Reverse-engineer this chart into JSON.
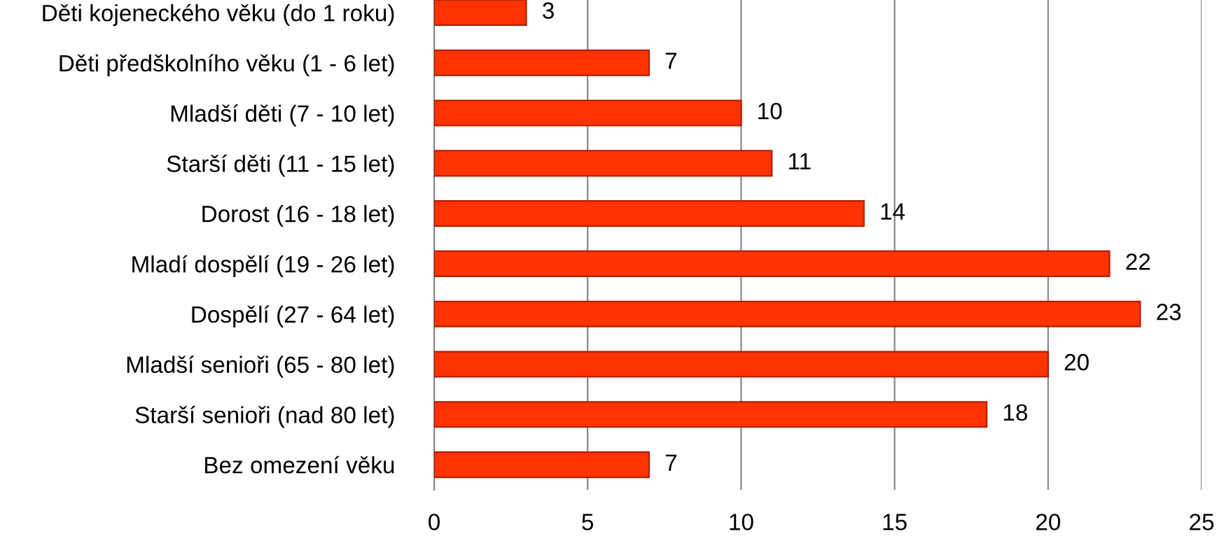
{
  "chart_data": {
    "type": "bar",
    "orientation": "horizontal",
    "categories": [
      "Děti kojeneckého věku (do 1 roku)",
      "Děti předškolního věku (1 - 6 let)",
      "Mladší děti (7 - 10 let)",
      "Starší děti (11 - 15 let)",
      "Dorost (16 - 18 let)",
      "Mladí dospělí (19 - 26 let)",
      "Dospělí (27 - 64 let)",
      "Mladší senioři (65 - 80 let)",
      "Starší senioři (nad 80 let)",
      "Bez omezení věku"
    ],
    "values": [
      3,
      7,
      10,
      11,
      14,
      22,
      23,
      20,
      18,
      7
    ],
    "color": "#ff3300",
    "xlim": [
      0,
      25
    ],
    "xticks": [
      0,
      5,
      10,
      15,
      20,
      25
    ],
    "grid": "x",
    "data_labels": true
  }
}
